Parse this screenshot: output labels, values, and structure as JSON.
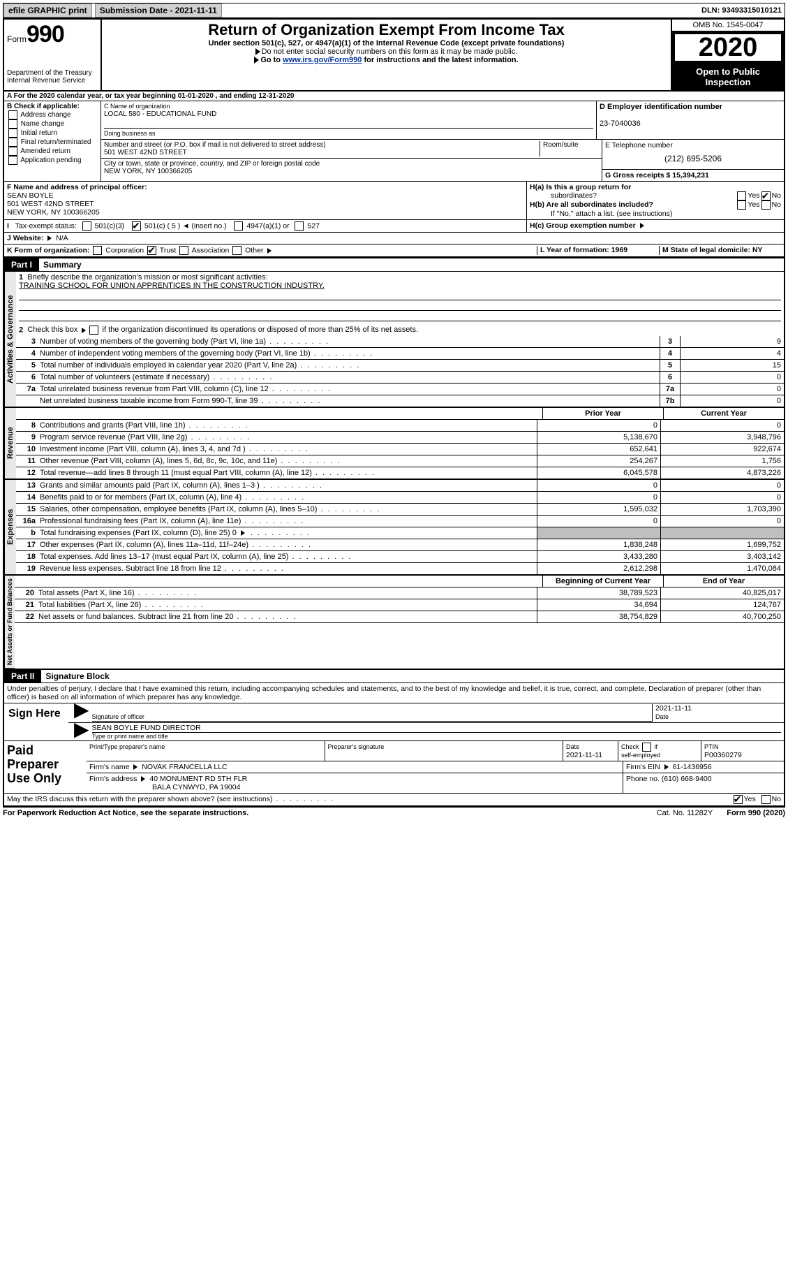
{
  "topbar": {
    "efile": "efile GRAPHIC print",
    "sub_label": "Submission Date - 2021-11-11",
    "dln": "DLN: 93493315010121"
  },
  "header": {
    "form_word": "Form",
    "form_num": "990",
    "dept": "Department of the Treasury\nInternal Revenue Service",
    "title": "Return of Organization Exempt From Income Tax",
    "sub": "Under section 501(c), 527, or 4947(a)(1) of the Internal Revenue Code (except private foundations)",
    "note1": "Do not enter social security numbers on this form as it may be made public.",
    "note2_pre": "Go to ",
    "note2_link": "www.irs.gov/Form990",
    "note2_post": " for instructions and the latest information.",
    "omb": "OMB No. 1545-0047",
    "year": "2020",
    "inspect": "Open to Public Inspection"
  },
  "rowA": "A For the 2020 calendar year, or tax year beginning 01-01-2020    , and ending 12-31-2020",
  "boxB": {
    "title": "B Check if applicable:",
    "opts": [
      "Address change",
      "Name change",
      "Initial return",
      "Final return/terminated",
      "Amended return",
      "Application pending"
    ]
  },
  "boxC": {
    "label": "C Name of organization",
    "name": "LOCAL 580 - EDUCATIONAL FUND",
    "dba_label": "Doing business as",
    "addr_label": "Number and street (or P.O. box if mail is not delivered to street address)",
    "room_label": "Room/suite",
    "addr": "501 WEST 42ND STREET",
    "city_label": "City or town, state or province, country, and ZIP or foreign postal code",
    "city": "NEW YORK, NY  100366205"
  },
  "boxD": {
    "label": "D Employer identification number",
    "val": "23-7040036"
  },
  "boxE": {
    "label": "E Telephone number",
    "val": "(212) 695-5206"
  },
  "boxG": {
    "label": "G Gross receipts $ 15,394,231"
  },
  "boxF": {
    "label": "F  Name and address of principal officer:",
    "line1": "SEAN BOYLE",
    "line2": "501 WEST 42ND STREET",
    "line3": "NEW YORK, NY  100366205"
  },
  "boxH": {
    "a": "H(a)  Is this a group return for",
    "a2": "subordinates?",
    "b": "H(b)  Are all subordinates included?",
    "note": "If \"No,\" attach a list. (see instructions)",
    "c": "H(c)  Group exemption number"
  },
  "rowI": {
    "label": "Tax-exempt status:",
    "c3": "501(c)(3)",
    "c5": "501(c) ( 5 )",
    "ins": "(insert no.)",
    "a1": "4947(a)(1) or",
    "s527": "527"
  },
  "rowJ": {
    "label": "J   Website:",
    "val": "N/A"
  },
  "rowK": {
    "label": "K Form of organization:",
    "opts": [
      "Corporation",
      "Trust",
      "Association",
      "Other"
    ],
    "l": "L Year of formation: 1969",
    "m": "M State of legal domicile: NY"
  },
  "part1": {
    "label": "Part I",
    "title": "Summary"
  },
  "gov": {
    "tab": "Activities & Governance",
    "l1": "Briefly describe the organization's mission or most significant activities:",
    "l1v": "TRAINING SCHOOL FOR UNION APPRENTICES IN THE CONSTRUCTION INDUSTRY.",
    "l2": "Check this box        if the organization discontinued its operations or disposed of more than 25% of its net assets.",
    "rows": [
      {
        "n": "3",
        "t": "Number of voting members of the governing body (Part VI, line 1a)",
        "b": "3",
        "v": "9"
      },
      {
        "n": "4",
        "t": "Number of independent voting members of the governing body (Part VI, line 1b)",
        "b": "4",
        "v": "4"
      },
      {
        "n": "5",
        "t": "Total number of individuals employed in calendar year 2020 (Part V, line 2a)",
        "b": "5",
        "v": "15"
      },
      {
        "n": "6",
        "t": "Total number of volunteers (estimate if necessary)",
        "b": "6",
        "v": "0"
      },
      {
        "n": "7a",
        "t": "Total unrelated business revenue from Part VIII, column (C), line 12",
        "b": "7a",
        "v": "0"
      },
      {
        "n": "",
        "t": "Net unrelated business taxable income from Form 990-T, line 39",
        "b": "7b",
        "v": "0"
      }
    ]
  },
  "hdr2": {
    "prior": "Prior Year",
    "curr": "Current Year"
  },
  "rev": {
    "tab": "Revenue",
    "rows": [
      {
        "n": "8",
        "t": "Contributions and grants (Part VIII, line 1h)",
        "p": "0",
        "c": "0"
      },
      {
        "n": "9",
        "t": "Program service revenue (Part VIII, line 2g)",
        "p": "5,138,670",
        "c": "3,948,796"
      },
      {
        "n": "10",
        "t": "Investment income (Part VIII, column (A), lines 3, 4, and 7d )",
        "p": "652,641",
        "c": "922,674"
      },
      {
        "n": "11",
        "t": "Other revenue (Part VIII, column (A), lines 5, 6d, 8c, 9c, 10c, and 11e)",
        "p": "254,267",
        "c": "1,756"
      },
      {
        "n": "12",
        "t": "Total revenue—add lines 8 through 11 (must equal Part VIII, column (A), line 12)",
        "p": "6,045,578",
        "c": "4,873,226"
      }
    ]
  },
  "exp": {
    "tab": "Expenses",
    "rows": [
      {
        "n": "13",
        "t": "Grants and similar amounts paid (Part IX, column (A), lines 1–3 )",
        "p": "0",
        "c": "0"
      },
      {
        "n": "14",
        "t": "Benefits paid to or for members (Part IX, column (A), line 4)",
        "p": "0",
        "c": "0"
      },
      {
        "n": "15",
        "t": "Salaries, other compensation, employee benefits (Part IX, column (A), lines 5–10)",
        "p": "1,595,032",
        "c": "1,703,390"
      },
      {
        "n": "16a",
        "t": "Professional fundraising fees (Part IX, column (A), line 11e)",
        "p": "0",
        "c": "0"
      },
      {
        "n": "b",
        "t": "Total fundraising expenses (Part IX, column (D), line 25)    0",
        "p": "GREY",
        "c": "GREY"
      },
      {
        "n": "17",
        "t": "Other expenses (Part IX, column (A), lines 11a–11d, 11f–24e)",
        "p": "1,838,248",
        "c": "1,699,752"
      },
      {
        "n": "18",
        "t": "Total expenses. Add lines 13–17 (must equal Part IX, column (A), line 25)",
        "p": "3,433,280",
        "c": "3,403,142"
      },
      {
        "n": "19",
        "t": "Revenue less expenses. Subtract line 18 from line 12",
        "p": "2,612,298",
        "c": "1,470,084"
      }
    ]
  },
  "hdr3": {
    "b": "Beginning of Current Year",
    "e": "End of Year"
  },
  "net": {
    "tab": "Net Assets or Fund Balances",
    "rows": [
      {
        "n": "20",
        "t": "Total assets (Part X, line 16)",
        "p": "38,789,523",
        "c": "40,825,017"
      },
      {
        "n": "21",
        "t": "Total liabilities (Part X, line 26)",
        "p": "34,694",
        "c": "124,767"
      },
      {
        "n": "22",
        "t": "Net assets or fund balances. Subtract line 21 from line 20",
        "p": "38,754,829",
        "c": "40,700,250"
      }
    ]
  },
  "part2": {
    "label": "Part II",
    "title": "Signature Block"
  },
  "declare": "Under penalties of perjury, I declare that I have examined this return, including accompanying schedules and statements, and to the best of my knowledge and belief, it is true, correct, and complete. Declaration of preparer (other than officer) is based on all information of which preparer has any knowledge.",
  "sign": {
    "here": "Sign Here",
    "sigoff": "Signature of officer",
    "date": "2021-11-11",
    "datel": "Date",
    "name": "SEAN BOYLE  FUND DIRECTOR",
    "type": "Type or print name and title"
  },
  "prep": {
    "left": "Paid Preparer Use Only",
    "h1": "Print/Type preparer's name",
    "h2": "Preparer's signature",
    "h3": "Date",
    "h3v": "2021-11-11",
    "h4": "Check        if self-employed",
    "h5": "PTIN",
    "h5v": "P00360279",
    "firm": "Firm's name     ",
    "firmv": "NOVAK FRANCELLA LLC",
    "ein": "Firm's EIN     61-1436956",
    "addr": "Firm's address     ",
    "addrv": "40 MONUMENT RD 5TH FLR",
    "addrv2": "BALA CYNWYD, PA  19004",
    "phone": "Phone no. (610) 668-9400"
  },
  "discuss": "May the IRS discuss this return with the preparer shown above? (see instructions)",
  "footer": {
    "l": "For Paperwork Reduction Act Notice, see the separate instructions.",
    "m": "Cat. No. 11282Y",
    "r": "Form 990 (2020)"
  },
  "yes": "Yes",
  "no": "No"
}
